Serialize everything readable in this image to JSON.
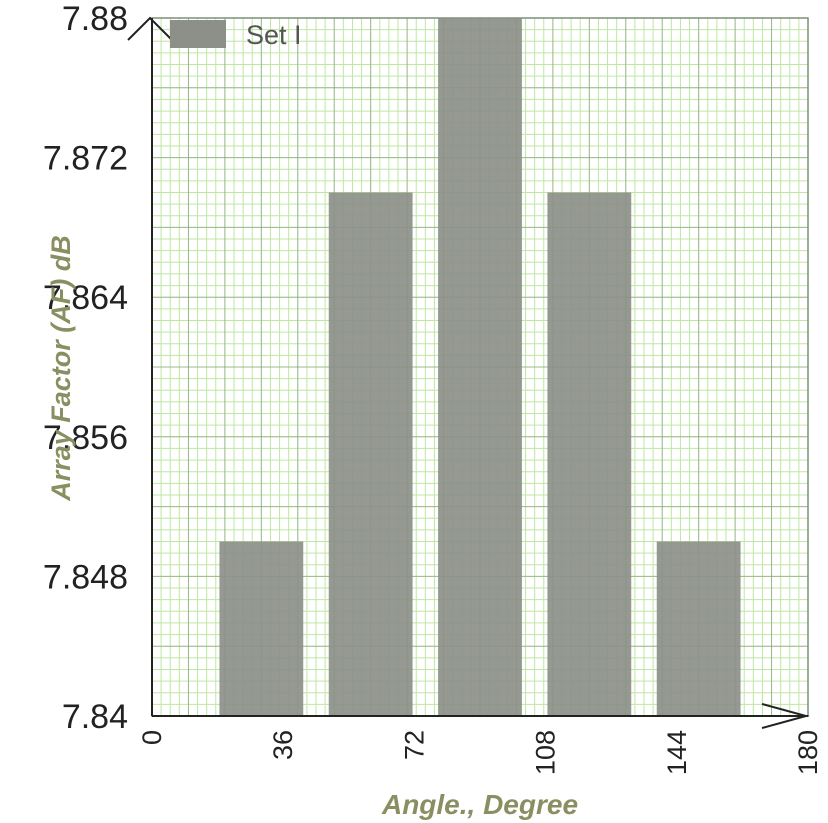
{
  "chart_data": {
    "type": "bar",
    "title": "",
    "xlabel": "Angle., Degree",
    "ylabel": "Array Factor (AF) dB",
    "ylim": [
      7.84,
      7.88
    ],
    "xlim": [
      0,
      180
    ],
    "x_ticks": [
      "0",
      "36",
      "72",
      "108",
      "144",
      "180"
    ],
    "y_ticks": [
      "7.84",
      "7.848",
      "7.856",
      "7.864",
      "7.872",
      "7.88"
    ],
    "grid": true,
    "legend_position": "top-left",
    "series": [
      {
        "name": "Set I",
        "color": "#8c9088",
        "x": [
          30,
          60,
          90,
          120,
          150
        ],
        "values": [
          7.85,
          7.87,
          7.88,
          7.87,
          7.85
        ]
      }
    ],
    "colors": {
      "grid_minor": "#bfe6a3",
      "grid_major": "#7f8f7a",
      "bar": "#8c9088",
      "axis_title": "#8a8f62"
    }
  }
}
